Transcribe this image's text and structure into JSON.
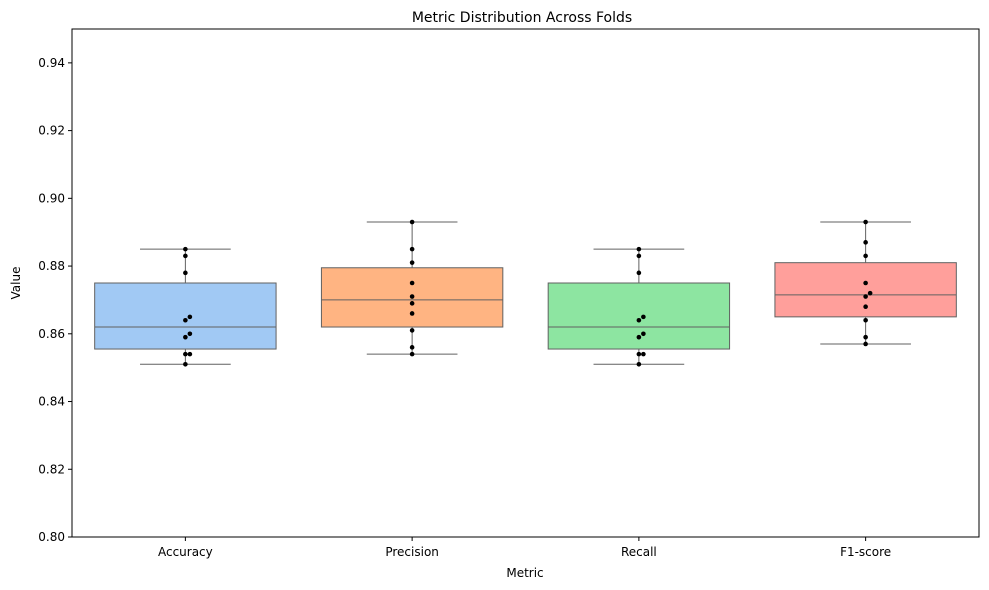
{
  "chart_data": {
    "type": "box",
    "title": "Metric Distribution Across Folds",
    "xlabel": "Metric",
    "ylabel": "Value",
    "ylim": [
      0.8,
      0.95
    ],
    "yticks": [
      0.8,
      0.82,
      0.84,
      0.86,
      0.88,
      0.9,
      0.92,
      0.94
    ],
    "ytick_labels": [
      "0.80",
      "0.82",
      "0.84",
      "0.86",
      "0.88",
      "0.90",
      "0.92",
      "0.94"
    ],
    "grid": false,
    "categories": [
      "Accuracy",
      "Precision",
      "Recall",
      "F1-score"
    ],
    "colors": [
      "#a1c9f4",
      "#ffb482",
      "#8de5a1",
      "#ff9f9b"
    ],
    "boxes": [
      {
        "min": 0.851,
        "q1": 0.8555,
        "median": 0.862,
        "q3": 0.875,
        "max": 0.885
      },
      {
        "min": 0.854,
        "q1": 0.862,
        "median": 0.87,
        "q3": 0.8795,
        "max": 0.893
      },
      {
        "min": 0.851,
        "q1": 0.8555,
        "median": 0.862,
        "q3": 0.875,
        "max": 0.885
      },
      {
        "min": 0.857,
        "q1": 0.865,
        "median": 0.8715,
        "q3": 0.881,
        "max": 0.893
      }
    ],
    "points": [
      [
        0.851,
        0.854,
        0.854,
        0.859,
        0.86,
        0.864,
        0.865,
        0.878,
        0.883,
        0.885
      ],
      [
        0.854,
        0.856,
        0.861,
        0.866,
        0.869,
        0.871,
        0.875,
        0.881,
        0.885,
        0.893
      ],
      [
        0.851,
        0.854,
        0.854,
        0.859,
        0.86,
        0.864,
        0.865,
        0.878,
        0.883,
        0.885
      ],
      [
        0.857,
        0.859,
        0.864,
        0.868,
        0.871,
        0.872,
        0.875,
        0.883,
        0.887,
        0.893
      ]
    ]
  }
}
